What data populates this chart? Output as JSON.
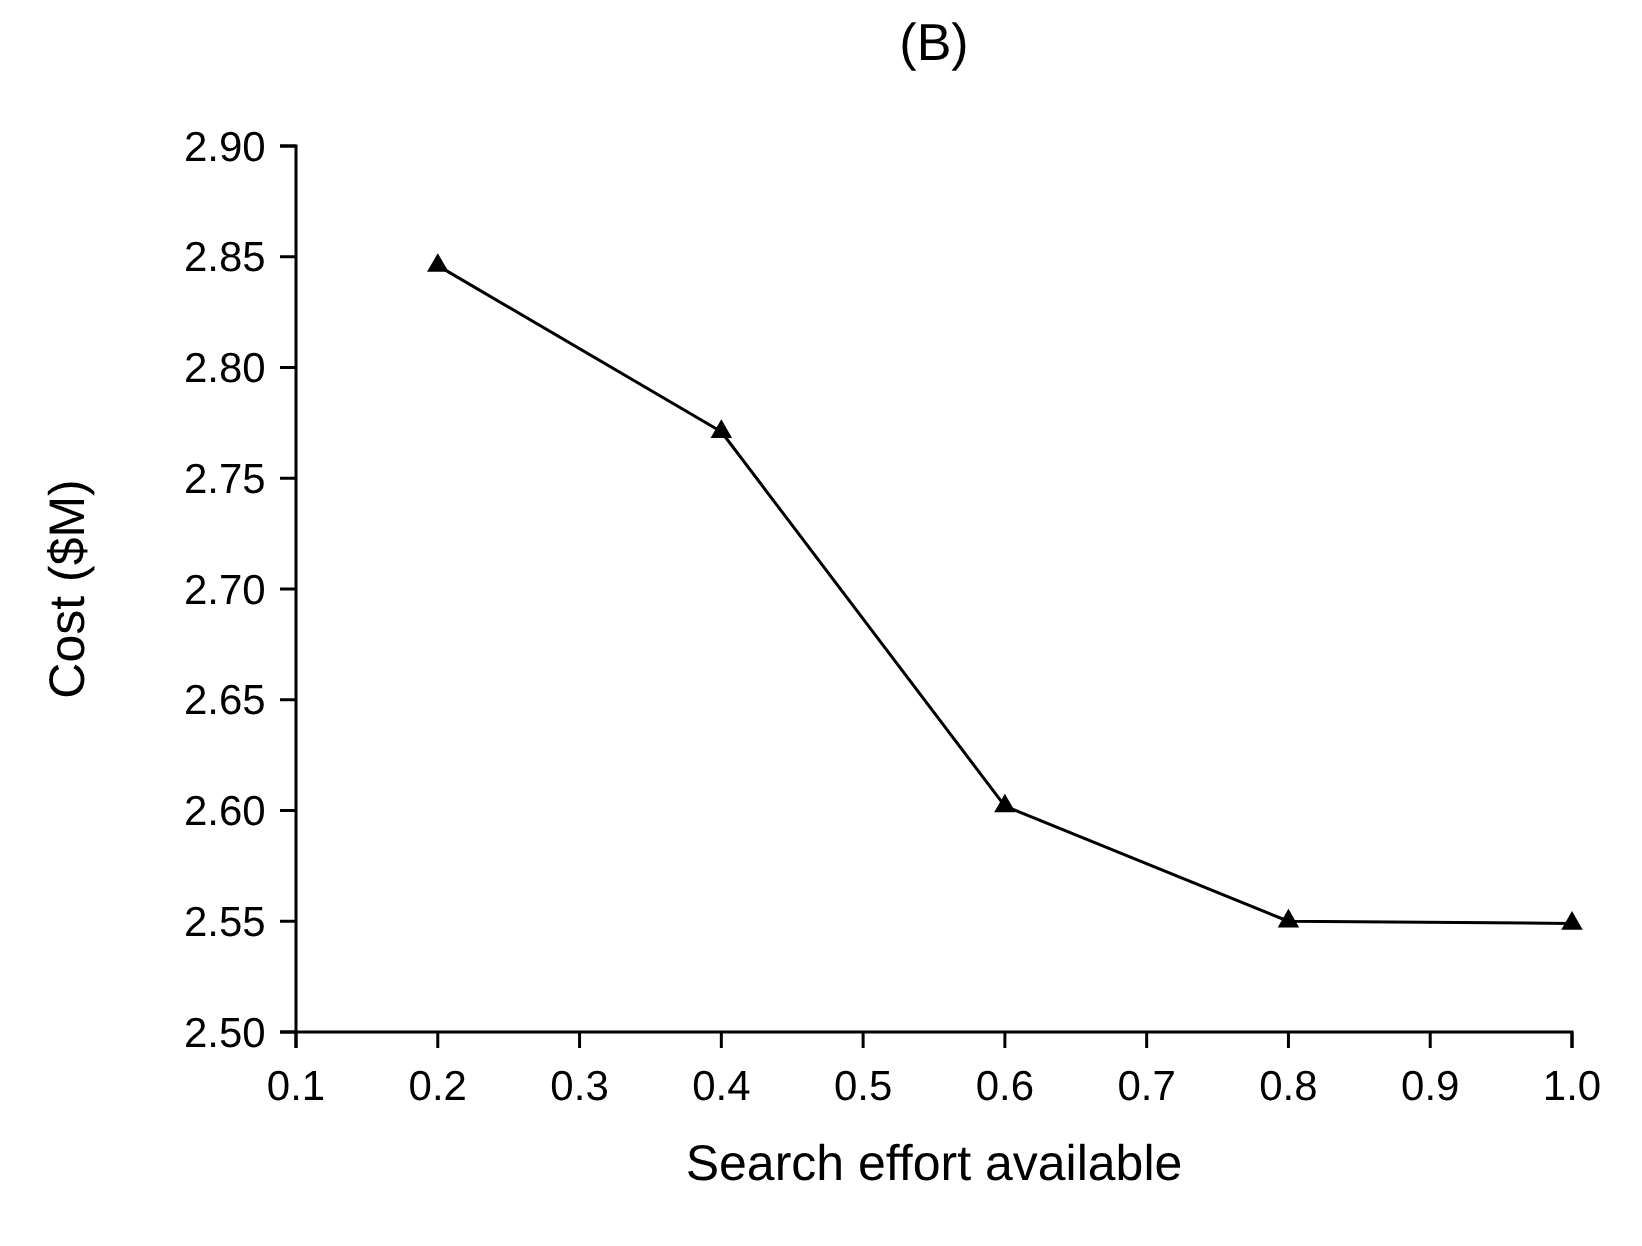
{
  "chart_data": {
    "type": "line",
    "title": "(B)",
    "xlabel": "Search effort available",
    "ylabel": "Cost ($M)",
    "x": [
      0.2,
      0.4,
      0.6,
      0.8,
      1.0
    ],
    "series": [
      {
        "color": "#000000",
        "values": [
          2.846,
          2.771,
          2.602,
          2.55,
          2.549
        ]
      }
    ],
    "xlim": [
      0.1,
      1.0
    ],
    "xticks": [
      0.1,
      0.2,
      0.3,
      0.4,
      0.5,
      0.6,
      0.7,
      0.8,
      0.9,
      {
        "value": 1.0,
        "label": "1.0"
      }
    ],
    "ylim": [
      2.5,
      2.9
    ],
    "yticks": [
      {
        "value": 2.5,
        "label": "2.50"
      },
      2.55,
      {
        "value": 2.6,
        "label": "2.60"
      },
      2.65,
      {
        "value": 2.7,
        "label": "2.70"
      },
      2.75,
      {
        "value": 2.8,
        "label": "2.80"
      },
      2.85,
      {
        "value": 2.9,
        "label": "2.90"
      }
    ],
    "grid": false,
    "marker": "triangle",
    "line_style": "solid"
  }
}
